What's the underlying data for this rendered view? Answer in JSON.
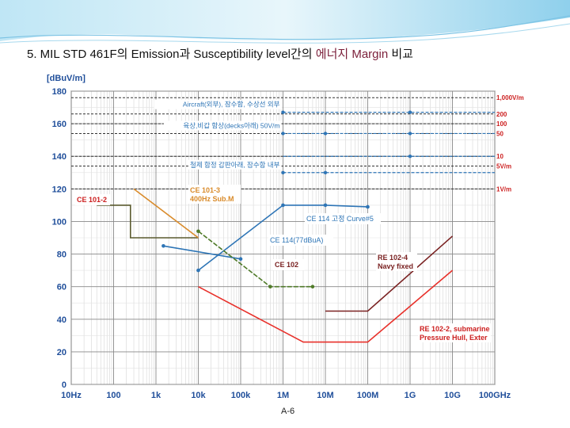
{
  "slide": {
    "title_part1": "5.  MIL STD 461F의 Emission과  Susceptibility level간의 ",
    "title_part2": "에너지 Margin",
    "title_part3": " 비교",
    "page_number": "A-6"
  },
  "colors": {
    "blue": "#2e75b6",
    "orange": "#d98b2b",
    "olive": "#5a5a2e",
    "green": "#4f7a28",
    "red": "#e8302a",
    "darkred": "#7a2222",
    "label_red": "#cc1f1f"
  },
  "chart_data": {
    "type": "line",
    "ylabel": "[dBuV/m]",
    "ylim": [
      0,
      180
    ],
    "y_ticks": [
      0,
      20,
      40,
      60,
      80,
      100,
      120,
      140,
      160,
      180
    ],
    "x_scale": "log",
    "x_ticks": [
      "10Hz",
      "100",
      "1k",
      "10k",
      "100k",
      "1M",
      "10M",
      "100M",
      "1G",
      "10G",
      "100GHz"
    ],
    "threshold_lines": [
      {
        "label": "1,000V/m",
        "y": 176
      },
      {
        "label": "200",
        "y": 166
      },
      {
        "label": "100",
        "y": 160
      },
      {
        "label": "50",
        "y": 154
      },
      {
        "label": "10",
        "y": 140
      },
      {
        "label": "5V/m",
        "y": 134
      },
      {
        "label": "1V/m",
        "y": 120
      }
    ],
    "rs103_levels": [
      {
        "label": "Aircraft(외부), 잠수함, 수상선 외부",
        "y": 167,
        "x_start_hz": 1000000.0,
        "points_hz": [
          1000000.0,
          1000000000.0
        ]
      },
      {
        "label": "육상,비갑 함상(decks아래) 50V/m",
        "y": 154,
        "x_start_hz": 1000000.0,
        "points_hz": [
          1000000.0,
          10000000.0,
          1000000000.0
        ]
      },
      {
        "label": "",
        "y": 140,
        "x_start_hz": 1000000.0,
        "points_hz": [
          1000000000.0
        ]
      },
      {
        "label": "철제 함정 갑판아래, 잠수함 내부",
        "y": 130,
        "x_start_hz": 1000000.0,
        "points_hz": [
          1000000.0,
          10000000.0
        ]
      }
    ],
    "series": [
      {
        "name": "CE 101-2",
        "color_key": "olive",
        "x_hz": [
          40,
          250,
          250,
          1500,
          10000.0
        ],
        "y": [
          110,
          110,
          90,
          90,
          90
        ]
      },
      {
        "name": "CE 101-3 400Hz Sub.M",
        "color_key": "orange",
        "x_hz": [
          300,
          10000.0
        ],
        "y": [
          120,
          90
        ]
      },
      {
        "name": "CE 114 고정 Curve#5",
        "color_key": "blue",
        "x_hz": [
          10000.0,
          1000000.0,
          10000000.0,
          100000000.0
        ],
        "y": [
          70,
          110,
          110,
          109
        ]
      },
      {
        "name": "CE 114(77dBuA)",
        "color_key": "blue",
        "x_hz": [
          1500,
          100000.0
        ],
        "y": [
          85,
          77
        ]
      },
      {
        "name": "CE 102",
        "color_key": "green",
        "x_hz": [
          10000.0,
          500000.0,
          5000000.0
        ],
        "y": [
          94,
          60,
          60
        ]
      },
      {
        "name": "RE 102-4 Navy fixed",
        "color_key": "darkred",
        "x_hz": [
          10000000.0,
          100000000.0,
          10000000000.0
        ],
        "y": [
          45,
          45,
          91
        ]
      },
      {
        "name": "RE 102-2, submarine Pressure Hull, Exter",
        "color_key": "red",
        "x_hz": [
          10000.0,
          3000000.0,
          100000000.0,
          10000000000.0
        ],
        "y": [
          60,
          26,
          26,
          70
        ]
      }
    ],
    "label_positions": [
      {
        "key": "CE 101-2"
      },
      {
        "key": "CE 101-3 400Hz Sub.M"
      },
      {
        "key": "CE 114 고정 Curve#5"
      },
      {
        "key": "CE 114(77dBuA)"
      },
      {
        "key": "CE 102"
      },
      {
        "key": "RE 102-4 Navy fixed"
      },
      {
        "key": "RE 102-2, submarine Pressure Hull, Exter"
      }
    ]
  }
}
